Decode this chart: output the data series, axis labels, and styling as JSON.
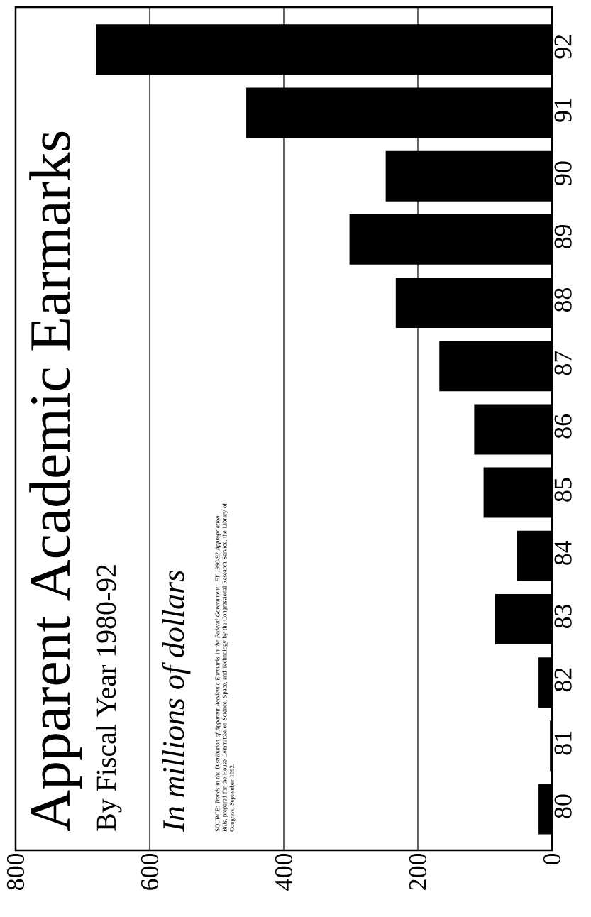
{
  "chart_data": {
    "type": "bar",
    "orientation": "horizontal",
    "title": "Apparent Academic Earmarks",
    "subtitle": "By Fiscal Year 1980-92",
    "ylabel": "In millions of dollars",
    "annotations": [
      "SOURCE: *Trends in the Distribution of Apparent Academic Earmarks in the Federal Government: FY 1980-92 Appropriation Bills*, prepared for the House Committee on Science, Space, and Technology by the Congressional Research Service, the Library of Congress, September 1992."
    ],
    "categories": [
      "92",
      "91",
      "90",
      "89",
      "88",
      "87",
      "86",
      "85",
      "84",
      "83",
      "82",
      "81",
      "80"
    ],
    "values": [
      680,
      456,
      248,
      302,
      233,
      168,
      116,
      102,
      52,
      85,
      20,
      3,
      20
    ],
    "color": "#000000",
    "xlim": [
      800,
      0
    ],
    "xticks": [
      0,
      200,
      400,
      600,
      800
    ],
    "grid": "x"
  }
}
